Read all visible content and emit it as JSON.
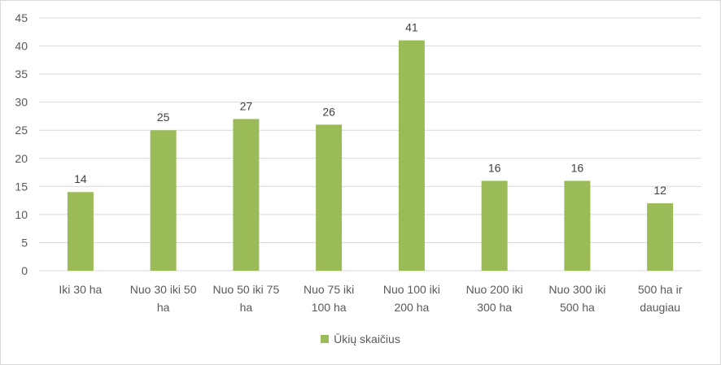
{
  "chart_data": {
    "type": "bar",
    "categories": [
      [
        "Iki 30 ha"
      ],
      [
        "Nuo 30 iki 50",
        "ha"
      ],
      [
        "Nuo 50 iki 75",
        "ha"
      ],
      [
        "Nuo 75 iki",
        "100 ha"
      ],
      [
        "Nuo 100 iki",
        "200 ha"
      ],
      [
        "Nuo 200 iki",
        "300 ha"
      ],
      [
        "Nuo 300 iki",
        "500 ha"
      ],
      [
        "500 ha ir",
        "daugiau"
      ]
    ],
    "series": [
      {
        "name": "Ūkių skaičius",
        "values": [
          14,
          25,
          27,
          26,
          41,
          16,
          16,
          12
        ]
      }
    ],
    "ylim": [
      0,
      45
    ],
    "yticks": [
      0,
      5,
      10,
      15,
      20,
      25,
      30,
      35,
      40,
      45
    ],
    "grid": true,
    "legend_position": "bottom",
    "bar_color": "#9bbb59",
    "grid_color": "#d9d9d9"
  }
}
